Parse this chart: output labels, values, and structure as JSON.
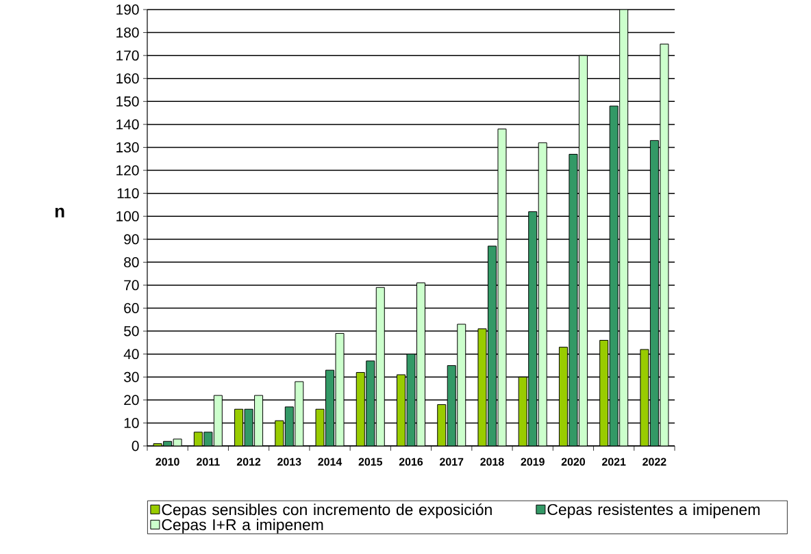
{
  "chart_data": {
    "type": "bar",
    "ylabel": "n",
    "categories": [
      "2010",
      "2011",
      "2012",
      "2013",
      "2014",
      "2015",
      "2016",
      "2017",
      "2018",
      "2019",
      "2020",
      "2021",
      "2022"
    ],
    "series": [
      {
        "name": "Cepas sensibles con incremento de exposición",
        "color": "#99cc00",
        "values": [
          1,
          6,
          16,
          11,
          16,
          32,
          31,
          18,
          51,
          30,
          43,
          46,
          42
        ]
      },
      {
        "name": "Cepas resistentes a imipenem",
        "color": "#339966",
        "values": [
          2,
          6,
          16,
          17,
          33,
          37,
          40,
          35,
          87,
          102,
          127,
          148,
          133
        ]
      },
      {
        "name": "Cepas I+R a imipenem",
        "color": "#ccffcc",
        "values": [
          3,
          22,
          22,
          28,
          49,
          69,
          71,
          53,
          138,
          132,
          170,
          190,
          175
        ]
      }
    ],
    "ylim": [
      0,
      190
    ],
    "yticks": [
      0,
      10,
      20,
      30,
      40,
      50,
      60,
      70,
      80,
      90,
      100,
      110,
      120,
      130,
      140,
      150,
      160,
      170,
      180,
      190
    ],
    "grid": "y",
    "legend": "bottom"
  }
}
